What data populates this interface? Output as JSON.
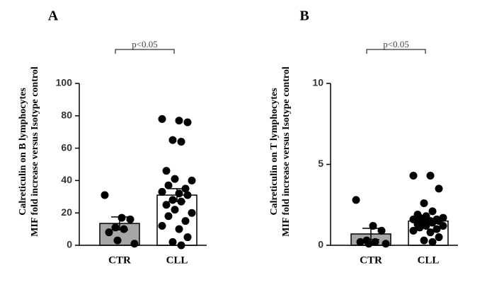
{
  "chart_data": [
    {
      "type": "bar",
      "panel": "A",
      "annotation": "p<0.05",
      "ylabel": [
        "Calreticulin on B lymphocytes",
        "MIF fold increase versus Isotype control"
      ],
      "categories": [
        "CTR",
        "CLL"
      ],
      "values": [
        13.5,
        31
      ],
      "errors": [
        4,
        4
      ],
      "points": [
        [
          31,
          17,
          16,
          11,
          10,
          8,
          3,
          1
        ],
        [
          78,
          77,
          76,
          65,
          64,
          46,
          41,
          40,
          37,
          35,
          33,
          32,
          31,
          28,
          27,
          25,
          22,
          20,
          18,
          15,
          12,
          10,
          5,
          2,
          0
        ]
      ],
      "colors": [
        "#a6a6a6",
        "#ffffff"
      ],
      "ylim": [
        0,
        100
      ],
      "yticks": [
        0,
        20,
        40,
        60,
        80,
        100
      ]
    },
    {
      "type": "bar",
      "panel": "B",
      "annotation": "p<0.05",
      "ylabel": [
        "Calreticulin on T lymphocytes",
        "MIF fold increase versus Isotype control"
      ],
      "categories": [
        "CTR",
        "CLL"
      ],
      "values": [
        0.7,
        1.5
      ],
      "errors": [
        0.35,
        0.15
      ],
      "points": [
        [
          2.8,
          1.2,
          0.9,
          0.3,
          0.2,
          0.2,
          0.1,
          0.1
        ],
        [
          4.3,
          4.3,
          3.5,
          2.6,
          2.1,
          1.9,
          1.8,
          1.7,
          1.7,
          1.6,
          1.6,
          1.5,
          1.5,
          1.4,
          1.4,
          1.3,
          1.2,
          1.2,
          1.1,
          1.0,
          0.9,
          0.8,
          0.5,
          0.3,
          0.2
        ]
      ],
      "colors": [
        "#a6a6a6",
        "#ffffff"
      ],
      "ylim": [
        0,
        10
      ],
      "yticks": [
        0,
        5,
        10
      ]
    }
  ]
}
